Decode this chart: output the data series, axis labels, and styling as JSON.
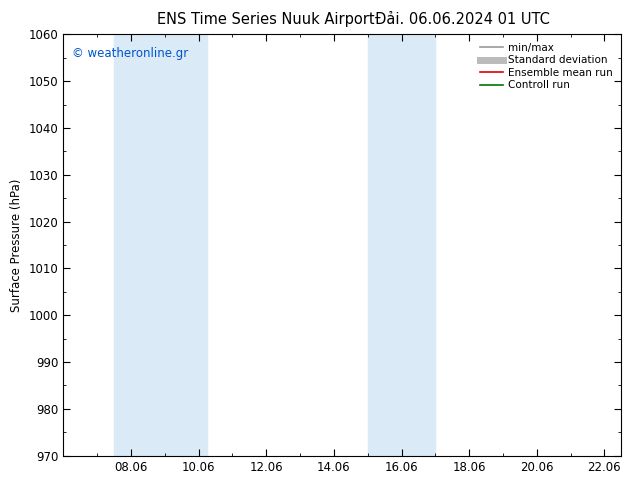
{
  "title_left": "ENS Time Series Nuuk Airport",
  "title_right": "Đải. 06.06.2024 01 UTC",
  "ylabel": "Surface Pressure (hPa)",
  "ylim": [
    970,
    1060
  ],
  "yticks": [
    970,
    980,
    990,
    1000,
    1010,
    1020,
    1030,
    1040,
    1050,
    1060
  ],
  "xlim_start": 6.0,
  "xlim_end": 22.5,
  "xtick_labels": [
    "08.06",
    "10.06",
    "12.06",
    "14.06",
    "16.06",
    "18.06",
    "20.06",
    "22.06"
  ],
  "xtick_positions": [
    8.0,
    10.0,
    12.0,
    14.0,
    16.0,
    18.0,
    20.0,
    22.0
  ],
  "shaded_bands": [
    {
      "x_start": 7.5,
      "x_end": 10.25
    },
    {
      "x_start": 15.0,
      "x_end": 17.0
    }
  ],
  "shade_color": "#daeaf7",
  "watermark_text": "© weatheronline.gr",
  "watermark_color": "#0055cc",
  "legend_items": [
    {
      "label": "min/max",
      "color": "#999999",
      "lw": 1.2
    },
    {
      "label": "Standard deviation",
      "color": "#bbbbbb",
      "lw": 5
    },
    {
      "label": "Ensemble mean run",
      "color": "#dd0000",
      "lw": 1.2
    },
    {
      "label": "Controll run",
      "color": "#007700",
      "lw": 1.2
    }
  ],
  "bg_color": "#ffffff",
  "plot_bg_color": "#ffffff",
  "tick_color": "#000000",
  "axis_label_fontsize": 8.5,
  "title_fontsize": 10.5,
  "watermark_fontsize": 8.5,
  "legend_fontsize": 7.5
}
